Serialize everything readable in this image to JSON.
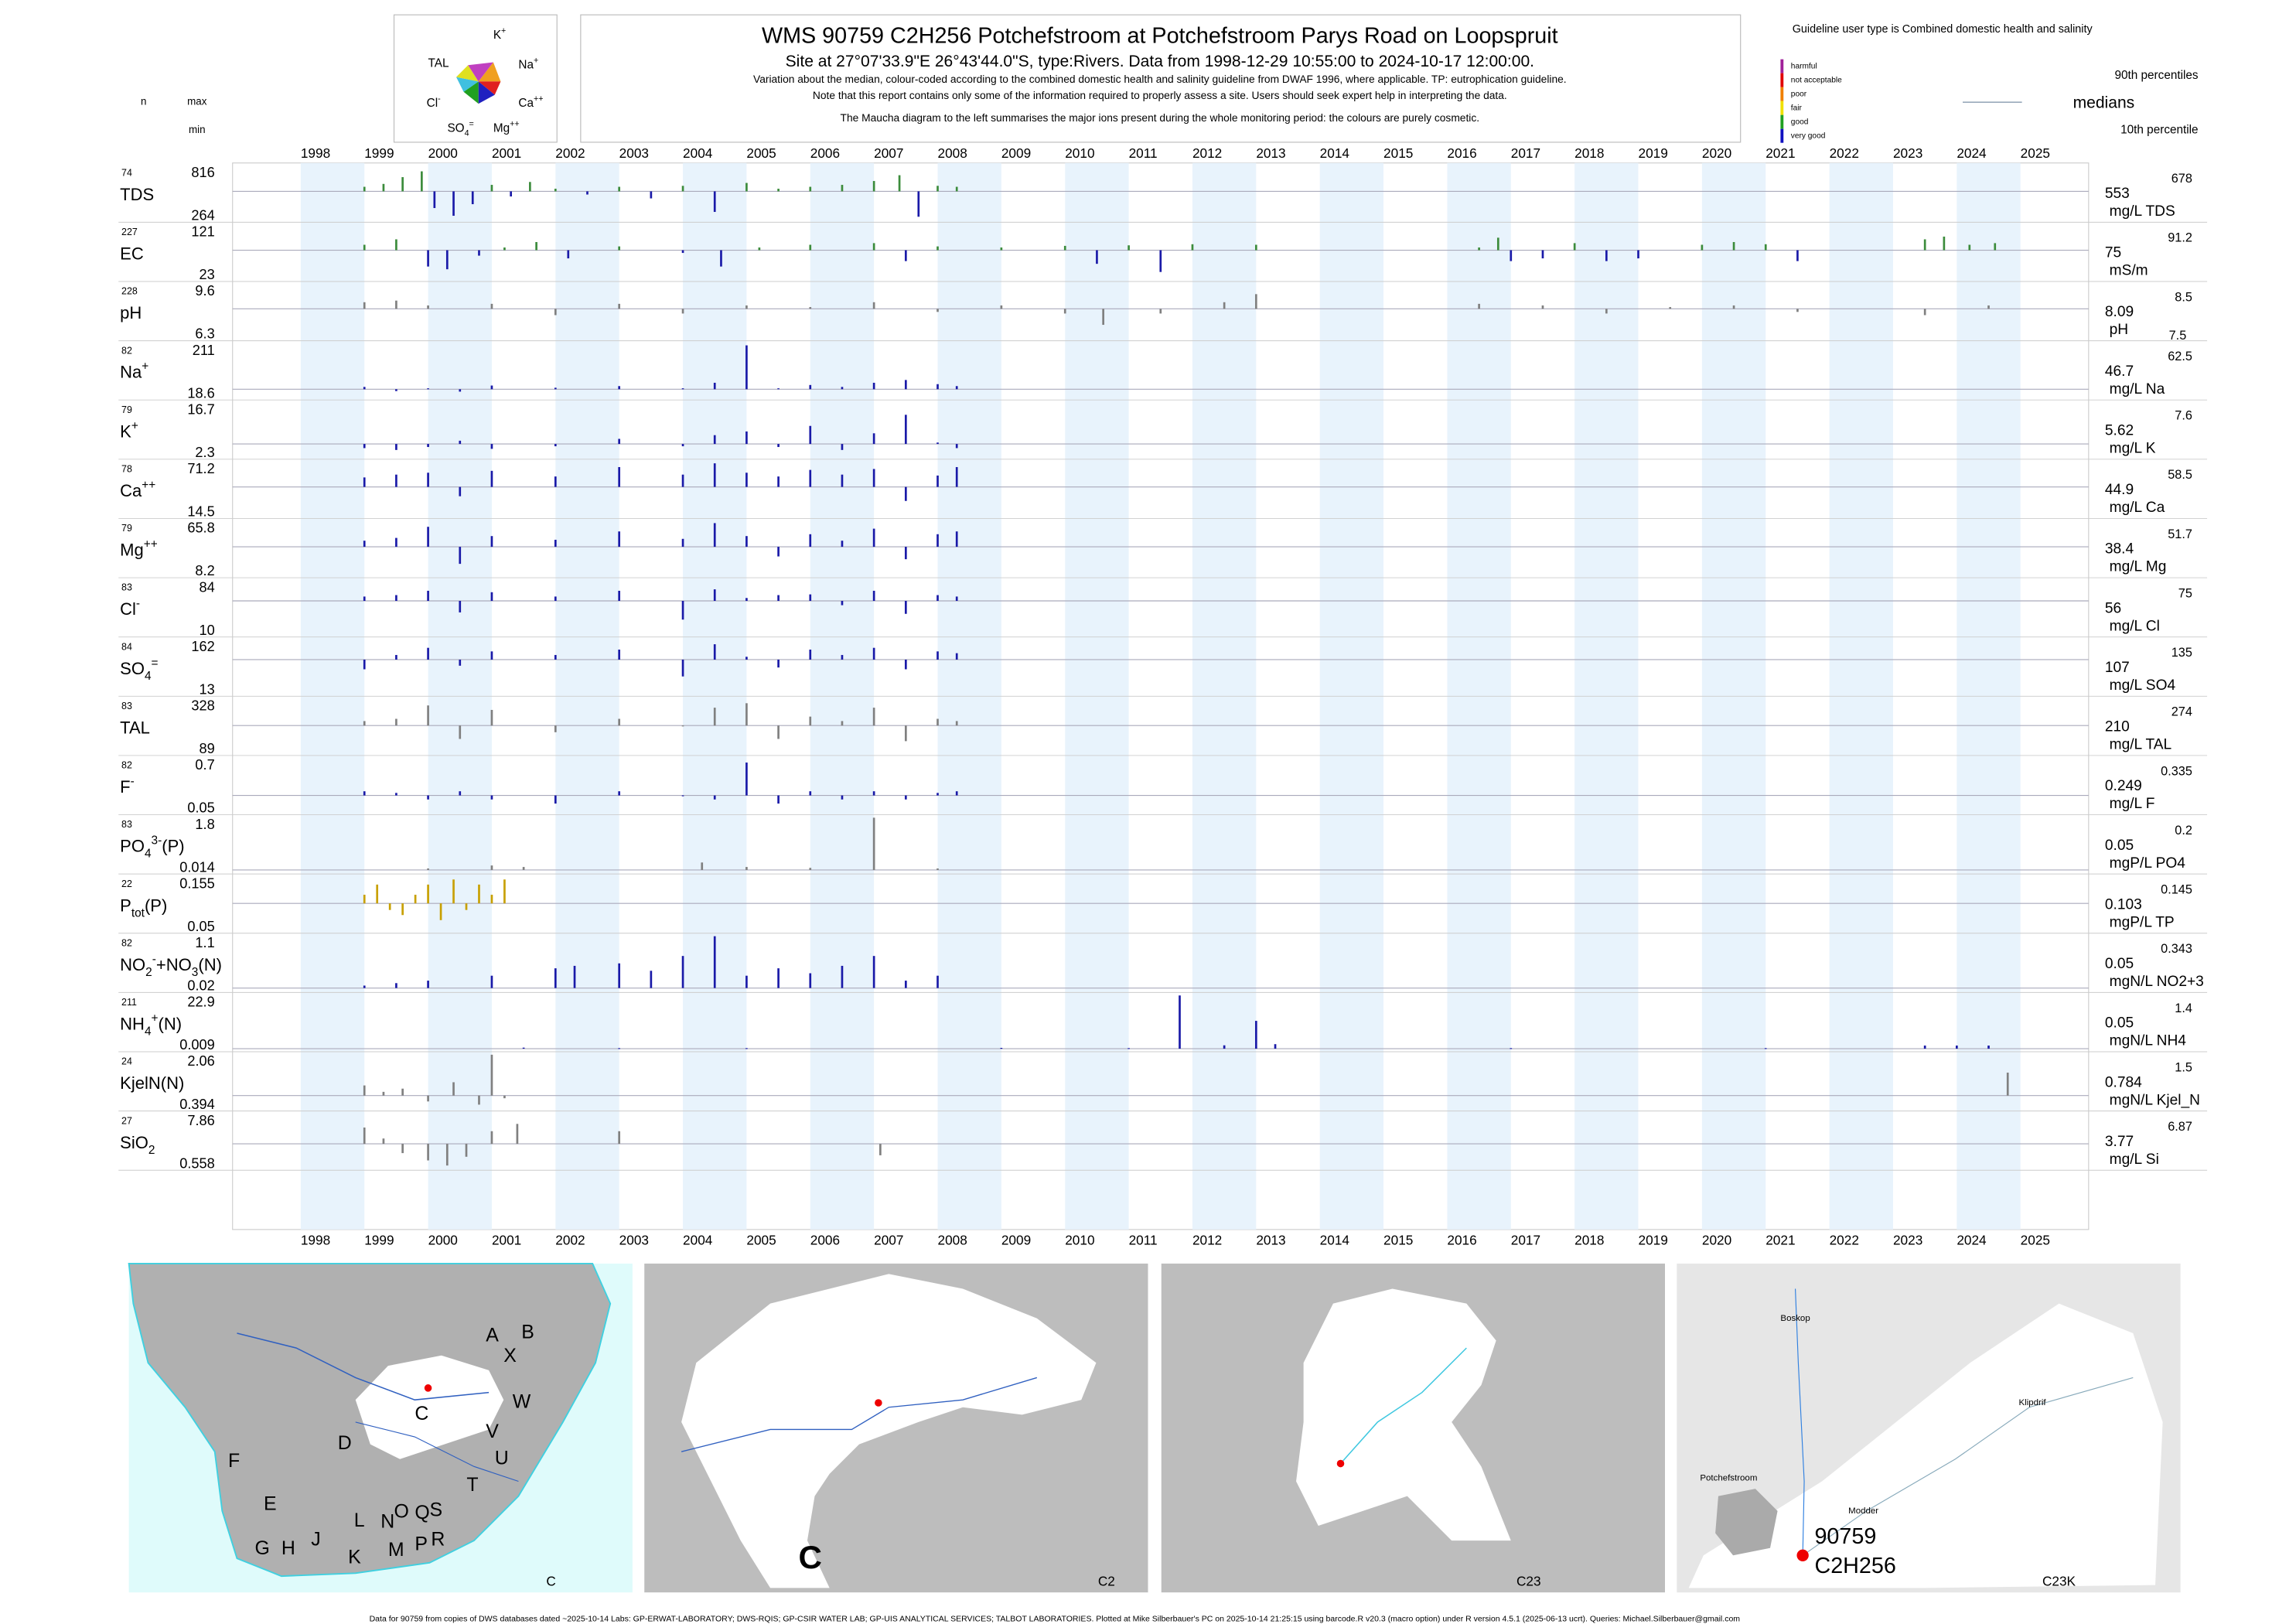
{
  "header": {
    "n": "n",
    "max": "max",
    "min": "min",
    "title": "WMS 90759 C2H256 Potchefstroom at Potchefstroom Parys Road on Loopspruit",
    "subtitle": "Site at 27°07'33.9\"E 26°43'44.0\"S, type:Rivers.  Data from 1998-12-29 10:55:00 to 2024-10-17 12:00:00.",
    "notes": [
      "Variation about the median,  colour-coded according to the combined domestic health and salinity guideline from DWAF 1996, where applicable. TP: eutrophication guideline.",
      "Note that this report contains only some of the information required to properly assess a site. Users should seek expert help in interpreting the data.",
      "The Maucha diagram to the left summarises the major ions present during the whole monitoring period: the colours are purely cosmetic."
    ]
  },
  "maucha": {
    "labels": [
      [
        [
          "K",
          ""
        ],
        [
          "+",
          "sup"
        ]
      ],
      [
        [
          "TAL",
          ""
        ]
      ],
      [
        [
          "Na",
          ""
        ],
        [
          "+",
          "sup"
        ]
      ],
      [
        [
          "Cl",
          ""
        ],
        [
          "-",
          "sup"
        ]
      ],
      [
        [
          "Ca",
          ""
        ],
        [
          "++",
          "sup"
        ]
      ],
      [
        [
          "SO",
          ""
        ],
        [
          "4",
          "sub"
        ],
        [
          "=",
          "sup"
        ]
      ],
      [
        [
          "Mg",
          ""
        ],
        [
          "++",
          "sup"
        ]
      ]
    ]
  },
  "legend": {
    "note": "Guideline user type is Combined domestic health and salinity",
    "classes": [
      {
        "name": "harmful",
        "color": "#a0209a"
      },
      {
        "name": "not acceptable",
        "color": "#e00000"
      },
      {
        "name": "poor",
        "color": "#f08000"
      },
      {
        "name": "fair",
        "color": "#f0e000"
      },
      {
        "name": "good",
        "color": "#20a020"
      },
      {
        "name": "very good",
        "color": "#1010c0"
      }
    ],
    "p90": "90th percentiles",
    "medians": "medians",
    "p10": "10th percentile"
  },
  "chart_data": {
    "type": "barcode",
    "xlim": [
      1996.93,
      2026.07
    ],
    "xticks": [
      1998,
      1999,
      2000,
      2001,
      2002,
      2003,
      2004,
      2005,
      2006,
      2007,
      2008,
      2009,
      2010,
      2011,
      2012,
      2013,
      2014,
      2015,
      2016,
      2017,
      2018,
      2019,
      2020,
      2021,
      2022,
      2023,
      2024,
      2025
    ],
    "shade_color": "#e8f3fc",
    "x": [
      1999.0,
      1999.5,
      2000.0,
      2000.5,
      2001.0,
      2002.0,
      2003.0,
      2004.0,
      2004.5,
      2005.0,
      2005.5,
      2006.0,
      2006.5,
      2007.0,
      2007.5,
      2008.0,
      2008.3
    ],
    "panels": [
      {
        "n": 74,
        "label": [
          [
            "TDS",
            ""
          ]
        ],
        "max": 816,
        "min": 264,
        "median": 553,
        "unit": "mg/L TDS",
        "p90": 678,
        "color": "#3c8c3c",
        "color_low": "#1a1aa8",
        "x": [
          1999.0,
          1999.3,
          1999.6,
          1999.9,
          2000.1,
          2000.4,
          2000.7,
          2001.0,
          2001.3,
          2001.6,
          2002.0,
          2002.5,
          2003.0,
          2003.5,
          2004.0,
          2004.5,
          2005.0,
          2005.5,
          2006.0,
          2006.5,
          2007.0,
          2007.4,
          2007.7,
          2008.0,
          2008.3
        ],
        "values": [
          600,
          630,
          700,
          760,
          380,
          300,
          420,
          620,
          500,
          650,
          580,
          520,
          600,
          480,
          610,
          340,
          640,
          580,
          600,
          620,
          660,
          720,
          290,
          610,
          600
        ]
      },
      {
        "n": 227,
        "label": [
          [
            "EC",
            ""
          ]
        ],
        "max": 121,
        "min": 23,
        "median": 75,
        "unit": "mS/m",
        "p90": 91.2,
        "color": "#3c8c3c",
        "color_low": "#1a1aa8",
        "x": [
          1999.0,
          1999.5,
          2000.0,
          2000.3,
          2000.8,
          2001.2,
          2001.7,
          2002.2,
          2003.0,
          2004.0,
          2004.6,
          2005.2,
          2006.0,
          2007.0,
          2007.5,
          2008.0,
          2009.0,
          2010.0,
          2010.5,
          2011.0,
          2011.5,
          2012.0,
          2013.0,
          2016.5,
          2016.8,
          2017.0,
          2017.5,
          2018.0,
          2018.5,
          2019.0,
          2020.0,
          2020.5,
          2021.0,
          2021.5,
          2023.5,
          2023.8,
          2024.2,
          2024.6
        ],
        "values": [
          85,
          95,
          45,
          40,
          65,
          80,
          90,
          60,
          82,
          70,
          45,
          80,
          85,
          88,
          55,
          82,
          80,
          83,
          50,
          84,
          35,
          86,
          85,
          80,
          98,
          55,
          60,
          88,
          55,
          60,
          85,
          90,
          86,
          55,
          95,
          100,
          85,
          88
        ]
      },
      {
        "n": 228,
        "label": [
          [
            "pH",
            ""
          ]
        ],
        "max": 9.6,
        "min": 6.3,
        "median": 8.09,
        "unit": "pH",
        "p90": 8.5,
        "p10": 7.5,
        "color": "#808080",
        "x": [
          1999.0,
          1999.5,
          2000.0,
          2001.0,
          2002.0,
          2003.0,
          2004.0,
          2005.0,
          2006.0,
          2007.0,
          2008.0,
          2009.0,
          2010.0,
          2010.6,
          2011.5,
          2012.5,
          2013.0,
          2016.5,
          2017.5,
          2018.5,
          2019.5,
          2020.5,
          2021.5,
          2023.5,
          2024.5
        ],
        "values": [
          8.5,
          8.6,
          8.3,
          8.4,
          7.7,
          8.4,
          7.8,
          8.3,
          8.2,
          8.5,
          7.9,
          8.3,
          7.8,
          7.1,
          7.8,
          8.5,
          9.0,
          8.4,
          8.3,
          7.8,
          8.2,
          8.3,
          7.9,
          7.7,
          8.3
        ]
      },
      {
        "n": 82,
        "label": [
          [
            "Na",
            ""
          ],
          [
            "+",
            "sup"
          ]
        ],
        "max": 211,
        "min": 18.6,
        "median": 46.7,
        "unit": "mg/L Na",
        "p90": 62.5,
        "color": "#1a1aa8",
        "values": [
          55,
          40,
          50,
          38,
          60,
          52,
          58,
          50,
          70,
          205,
          50,
          62,
          55,
          70,
          80,
          65,
          58
        ]
      },
      {
        "n": 79,
        "label": [
          [
            "K",
            ""
          ],
          [
            "+",
            "sup"
          ]
        ],
        "max": 16.7,
        "min": 2.3,
        "median": 5.62,
        "unit": "mg/L K",
        "p90": 7.6,
        "color": "#1a1aa8",
        "values": [
          4.5,
          4.0,
          4.8,
          6.5,
          4.3,
          5.0,
          7.0,
          5.0,
          8.0,
          9.0,
          4.8,
          10.5,
          4.0,
          8.5,
          13.5,
          6.0,
          4.5
        ]
      },
      {
        "n": 78,
        "label": [
          [
            "Ca",
            ""
          ],
          [
            "++",
            "sup"
          ]
        ],
        "max": 71.2,
        "min": 14.5,
        "median": 44.9,
        "unit": "mg/L Ca",
        "p90": 58.5,
        "color": "#1a1aa8",
        "values": [
          55,
          58,
          60,
          35,
          62,
          56,
          66,
          58,
          70,
          60,
          56,
          63,
          58,
          64,
          30,
          57,
          66
        ]
      },
      {
        "n": 79,
        "label": [
          [
            "Mg",
            ""
          ],
          [
            "++",
            "sup"
          ]
        ],
        "max": 65.8,
        "min": 8.2,
        "median": 38.4,
        "unit": "mg/L Mg",
        "p90": 51.7,
        "color": "#1a1aa8",
        "values": [
          45,
          48,
          60,
          20,
          50,
          46,
          55,
          47,
          64,
          50,
          28,
          52,
          45,
          58,
          25,
          52,
          55
        ]
      },
      {
        "n": 83,
        "label": [
          [
            "Cl",
            ""
          ],
          [
            "-",
            "sup"
          ]
        ],
        "max": 84,
        "min": 10,
        "median": 56,
        "unit": "mg/L Cl",
        "p90": 75,
        "color": "#1a1aa8",
        "values": [
          62,
          64,
          70,
          40,
          68,
          62,
          70,
          30,
          72,
          60,
          64,
          65,
          50,
          70,
          38,
          64,
          62
        ]
      },
      {
        "n": 84,
        "label": [
          [
            "SO",
            ""
          ],
          [
            "4",
            "sub"
          ],
          [
            "=",
            "sup"
          ]
        ],
        "max": 162,
        "min": 13,
        "median": 107,
        "unit": "mg/L SO4",
        "p90": 135,
        "color": "#1a1aa8",
        "values": [
          80,
          120,
          140,
          90,
          130,
          120,
          135,
          60,
          150,
          115,
          85,
          135,
          120,
          140,
          80,
          130,
          125
        ]
      },
      {
        "n": 83,
        "label": [
          [
            "TAL",
            ""
          ]
        ],
        "max": 328,
        "min": 89,
        "median": 210,
        "unit": "mg/L TAL",
        "p90": 274,
        "color": "#808080",
        "values": [
          230,
          240,
          300,
          150,
          280,
          180,
          240,
          210,
          290,
          310,
          150,
          250,
          230,
          290,
          140,
          240,
          230
        ]
      },
      {
        "n": 82,
        "label": [
          [
            "F",
            ""
          ],
          [
            "-",
            "sup"
          ]
        ],
        "max": 0.7,
        "min": 0.05,
        "median": 0.249,
        "unit": "mg/L F",
        "p90": 0.335,
        "color": "#1a1aa8",
        "values": [
          0.3,
          0.28,
          0.2,
          0.3,
          0.2,
          0.15,
          0.3,
          0.25,
          0.2,
          0.65,
          0.15,
          0.3,
          0.2,
          0.3,
          0.2,
          0.28,
          0.3
        ]
      },
      {
        "n": 83,
        "label": [
          [
            "PO",
            ""
          ],
          [
            "4",
            "sub"
          ],
          [
            "3-",
            "sup"
          ],
          [
            "(P)",
            ""
          ]
        ],
        "max": 1.8,
        "min": 0.014,
        "median": 0.05,
        "unit": "mgP/L PO4",
        "p90": 0.2,
        "color": "#808080",
        "x": [
          2000.0,
          2001.0,
          2001.5,
          2004.3,
          2005.0,
          2006.0,
          2007.0,
          2008.0
        ],
        "values": [
          0.1,
          0.2,
          0.15,
          0.3,
          0.15,
          0.12,
          1.8,
          0.1
        ]
      },
      {
        "n": 22,
        "label": [
          [
            "P",
            ""
          ],
          [
            "tot",
            "sub"
          ],
          [
            "(P)",
            ""
          ]
        ],
        "max": 0.155,
        "min": 0.05,
        "median": 0.103,
        "unit": "mgP/L TP",
        "p90": 0.145,
        "color": "#c8a000",
        "x": [
          1999.0,
          1999.2,
          1999.4,
          1999.6,
          1999.8,
          2000.0,
          2000.2,
          2000.4,
          2000.6,
          2000.8,
          2001.0,
          2001.2
        ],
        "values": [
          0.12,
          0.14,
          0.09,
          0.08,
          0.12,
          0.14,
          0.07,
          0.15,
          0.09,
          0.14,
          0.12,
          0.15
        ]
      },
      {
        "n": 82,
        "label": [
          [
            "NO",
            ""
          ],
          [
            "2",
            "sub"
          ],
          [
            "-",
            "sup"
          ],
          [
            "+NO",
            ""
          ],
          [
            "3",
            "sub"
          ],
          [
            "(N)",
            ""
          ]
        ],
        "max": 1.1,
        "min": 0.02,
        "median": 0.05,
        "unit": "mgN/L NO2+3",
        "p90": 0.343,
        "color": "#1a1aa8",
        "x": [
          1999.0,
          1999.5,
          2000.0,
          2001.0,
          2002.0,
          2002.3,
          2003.0,
          2003.5,
          2004.0,
          2004.5,
          2005.0,
          2005.5,
          2006.0,
          2006.5,
          2007.0,
          2007.5,
          2008.0
        ],
        "values": [
          0.1,
          0.15,
          0.2,
          0.3,
          0.45,
          0.5,
          0.55,
          0.4,
          0.7,
          1.1,
          0.3,
          0.45,
          0.35,
          0.5,
          0.7,
          0.2,
          0.3
        ]
      },
      {
        "n": 211,
        "label": [
          [
            "NH",
            ""
          ],
          [
            "4",
            "sub"
          ],
          [
            "+",
            "sup"
          ],
          [
            "(N)",
            ""
          ]
        ],
        "max": 22.9,
        "min": 0.009,
        "median": 0.05,
        "unit": "mgN/L NH4",
        "p90": 1.4,
        "color": "#1a1aa8",
        "x": [
          2001.5,
          2003.0,
          2005.0,
          2009.0,
          2011.0,
          2011.8,
          2012.5,
          2013.0,
          2013.3,
          2017.0,
          2021.0,
          2023.5,
          2024.0,
          2024.5
        ],
        "values": [
          0.5,
          0.3,
          0.3,
          0.4,
          0.3,
          22.9,
          1.5,
          12,
          2,
          0.3,
          0.3,
          1.4,
          1.4,
          1.4
        ]
      },
      {
        "n": 24,
        "label": [
          [
            "KjelN(N)",
            ""
          ]
        ],
        "max": 2.06,
        "min": 0.394,
        "median": 0.784,
        "unit": "mgN/L Kjel_N",
        "p90": 1.5,
        "color": "#808080",
        "x": [
          1999.0,
          1999.3,
          1999.6,
          2000.0,
          2000.4,
          2000.8,
          2001.0,
          2001.2,
          2024.8
        ],
        "values": [
          1.1,
          0.9,
          1.0,
          0.6,
          1.2,
          0.5,
          2.06,
          0.7,
          1.5
        ]
      },
      {
        "n": 27,
        "label": [
          [
            "SiO",
            ""
          ],
          [
            "2",
            "sub"
          ]
        ],
        "max": 7.86,
        "min": 0.558,
        "median": 3.77,
        "unit": "mg/L Si",
        "p90": 6.87,
        "color": "#808080",
        "x": [
          1999.0,
          1999.3,
          1999.6,
          2000.0,
          2000.3,
          2000.6,
          2001.0,
          2001.4,
          2003.0,
          2007.1
        ],
        "values": [
          6.0,
          4.5,
          2.5,
          1.5,
          0.8,
          2.0,
          5.5,
          6.5,
          5.5,
          2.2
        ]
      }
    ]
  },
  "maps": {
    "c_letters": [
      "A",
      "B",
      "X",
      "W",
      "V",
      "U",
      "T",
      "S",
      "R",
      "Q",
      "P",
      "N",
      "O",
      "M",
      "L",
      "K",
      "J",
      "H",
      "G",
      "F",
      "E",
      "D",
      "C"
    ],
    "labels": [
      "C",
      "C2",
      "C23",
      "C23K"
    ],
    "big_c": "C",
    "places": [
      "Boskop",
      "Klipdrif",
      "Potchefstroom",
      "Modder"
    ],
    "site_no": "90759",
    "site_code": "C2H256"
  },
  "footer": "Data for 90759 from copies of DWS databases dated ~2025-10-14 Labs: GP-ERWAT-LABORATORY; DWS-RQIS; GP-CSIR WATER LAB; GP-UIS ANALYTICAL SERVICES; TALBOT LABORATORIES. Plotted at Mike Silberbauer's PC on 2025-10-14 21:25:15 using barcode.R v20.3 (macro option) under R version 4.5.1 (2025-06-13 ucrt). Queries: Michael.Silberbauer@gmail.com"
}
